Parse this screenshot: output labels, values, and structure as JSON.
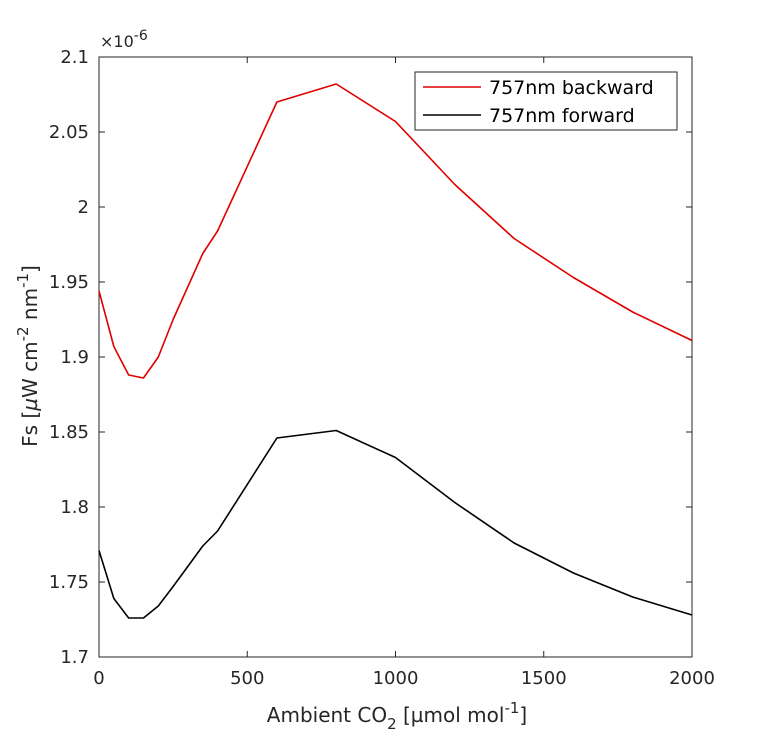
{
  "chart_data": {
    "type": "line",
    "xlabel": {
      "pre": "Ambient CO",
      "sub": "2",
      "mid": " [µmol mol",
      "sup": "-1",
      "post": "]"
    },
    "ylabel": {
      "p1": "Fs [",
      "mu": "µ",
      "p2": "W cm",
      "s1": "-2",
      "p3": " nm",
      "s2": "-1",
      "p4": "]"
    },
    "y_exponent_label": {
      "base": "×10",
      "exp": "-6"
    },
    "xlim": [
      0,
      2000
    ],
    "ylim": [
      1.7,
      2.1
    ],
    "x_ticks": [
      0,
      500,
      1000,
      1500,
      2000
    ],
    "x_tick_labels": [
      "0",
      "500",
      "1000",
      "1500",
      "2000"
    ],
    "y_ticks": [
      1.7,
      1.75,
      1.8,
      1.85,
      1.9,
      1.95,
      2.0,
      2.05,
      2.1
    ],
    "y_tick_labels": [
      "1.7",
      "1.75",
      "1.8",
      "1.85",
      "1.9",
      "1.95",
      "2",
      "2.05",
      "2.1"
    ],
    "grid": false,
    "legend_position": "top-right",
    "x": [
      0,
      50,
      100,
      150,
      200,
      250,
      350,
      400,
      600,
      800,
      1000,
      1200,
      1400,
      1600,
      1800,
      2000
    ],
    "series": [
      {
        "name": "757nm backward",
        "color": "#e00000",
        "values": [
          1.944,
          1.907,
          1.888,
          1.886,
          1.9,
          1.925,
          1.969,
          1.984,
          2.07,
          2.082,
          2.057,
          2.015,
          1.979,
          1.953,
          1.93,
          1.911
        ]
      },
      {
        "name": "757nm forward",
        "color": "#000000",
        "values": [
          1.771,
          1.739,
          1.726,
          1.726,
          1.734,
          1.747,
          1.774,
          1.784,
          1.846,
          1.851,
          1.833,
          1.803,
          1.776,
          1.756,
          1.74,
          1.728
        ]
      }
    ]
  }
}
